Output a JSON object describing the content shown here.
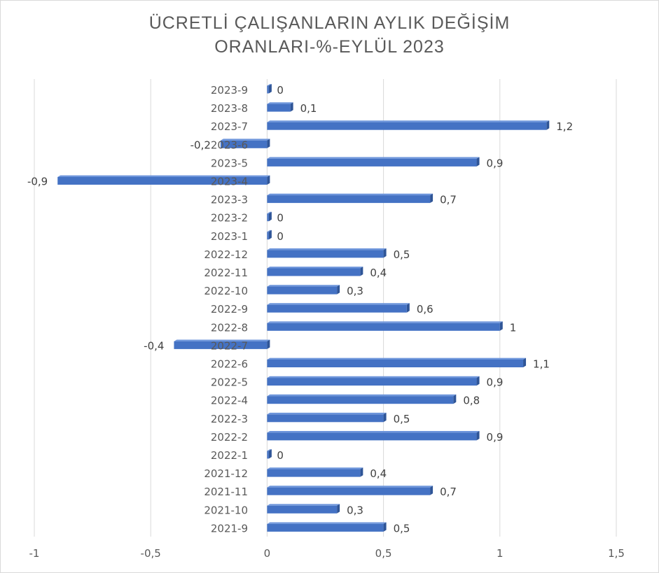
{
  "chart_data": {
    "type": "bar",
    "orientation": "horizontal",
    "title_lines": [
      "ÜCRETLİ ÇALIŞANLARIN AYLIK DEĞİŞİM",
      "ORANLARI-%-EYLÜL 2023"
    ],
    "xlim": [
      -1,
      1.5
    ],
    "x_ticks": [
      -1,
      -0.5,
      0,
      0.5,
      1,
      1.5
    ],
    "x_tick_labels": [
      "-1",
      "-0,5",
      "0",
      "0,5",
      "1",
      "1,5"
    ],
    "grid": "vertical",
    "bar_color": "#4472C4",
    "categories": [
      "2023-9",
      "2023-8",
      "2023-7",
      "2023-6",
      "2023-5",
      "2023-4",
      "2023-3",
      "2023-2",
      "2023-1",
      "2022-12",
      "2022-11",
      "2022-10",
      "2022-9",
      "2022-8",
      "2022-7",
      "2022-6",
      "2022-5",
      "2022-4",
      "2022-3",
      "2022-2",
      "2022-1",
      "2021-12",
      "2021-11",
      "2021-10",
      "2021-9"
    ],
    "values": [
      0,
      0.1,
      1.2,
      -0.2,
      0.9,
      -0.9,
      0.7,
      0,
      0,
      0.5,
      0.4,
      0.3,
      0.6,
      1,
      -0.4,
      1.1,
      0.9,
      0.8,
      0.5,
      0.9,
      0,
      0.4,
      0.7,
      0.3,
      0.5
    ],
    "value_labels": [
      "0",
      "0,1",
      "1,2",
      "-0,2",
      "0,9",
      "-0,9",
      "0,7",
      "0",
      "0",
      "0,5",
      "0,4",
      "0,3",
      "0,6",
      "1",
      "-0,4",
      "1,1",
      "0,9",
      "0,8",
      "0,5",
      "0,9",
      "0",
      "0,4",
      "0,7",
      "0,3",
      "0,5"
    ]
  }
}
